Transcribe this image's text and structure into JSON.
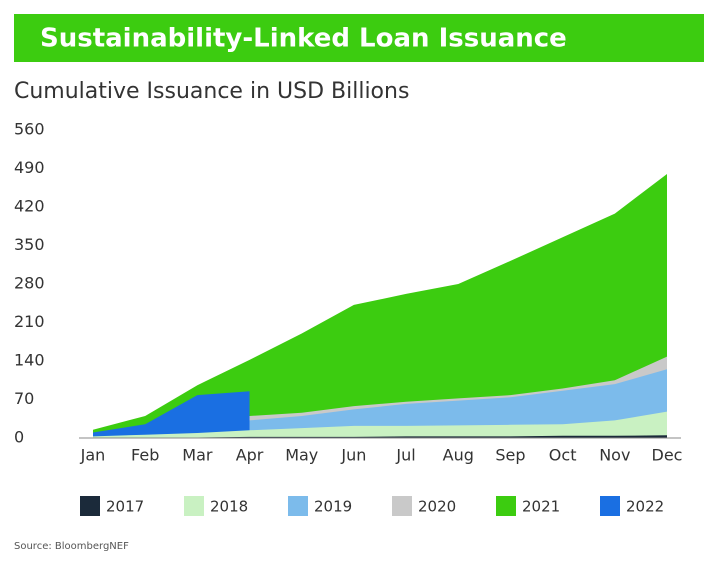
{
  "chart_data": {
    "type": "area",
    "title": "Sustainability-Linked Loan Issuance",
    "subtitle": "Cumulative Issuance in USD Billions",
    "source": "Source: BloombergNEF",
    "categories": [
      "Jan",
      "Feb",
      "Mar",
      "Apr",
      "May",
      "Jun",
      "Jul",
      "Aug",
      "Sep",
      "Oct",
      "Nov",
      "Dec"
    ],
    "ylim": [
      0,
      560
    ],
    "yticks": [
      0,
      70,
      140,
      210,
      280,
      350,
      420,
      490,
      560
    ],
    "series": [
      {
        "name": "2017",
        "color": "#1b2a3a",
        "values": [
          1,
          1,
          1,
          2,
          2,
          2,
          3,
          3,
          3,
          4,
          4,
          5
        ]
      },
      {
        "name": "2018",
        "color": "#c9f1c2",
        "values": [
          3,
          6,
          9,
          14,
          18,
          22,
          22,
          23,
          24,
          25,
          32,
          48
        ]
      },
      {
        "name": "2019",
        "color": "#7cbbeb",
        "values": [
          7,
          15,
          22,
          32,
          40,
          52,
          62,
          68,
          74,
          86,
          98,
          125
        ]
      },
      {
        "name": "2020",
        "color": "#c9c9c9",
        "values": [
          8,
          20,
          30,
          40,
          46,
          58,
          66,
          72,
          78,
          90,
          105,
          148
        ]
      },
      {
        "name": "2021",
        "color": "#3ccc10",
        "values": [
          15,
          40,
          96,
          142,
          190,
          242,
          262,
          280,
          322,
          365,
          408,
          480
        ]
      },
      {
        "name": "2022",
        "color": "#1a6fe2",
        "values": [
          10,
          25,
          78,
          85,
          null,
          null,
          null,
          null,
          null,
          null,
          null,
          null
        ]
      }
    ]
  }
}
